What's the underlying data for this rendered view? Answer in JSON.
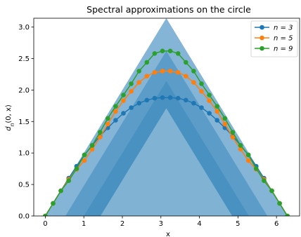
{
  "chart_data": {
    "type": "line",
    "title": "Spectral approximations on the circle",
    "xlabel": "x",
    "ylabel": "d_n(0, x)",
    "xlim": [
      -0.3,
      6.6
    ],
    "ylim": [
      0,
      3.14
    ],
    "xticks": [
      "0",
      "1",
      "2",
      "3",
      "4",
      "5",
      "6"
    ],
    "yticks": [
      "0.0",
      "0.5",
      "1.0",
      "1.5",
      "2.0",
      "2.5",
      "3.0"
    ],
    "grid": false,
    "legend_position": "top-right",
    "bands": [
      {
        "apex": 3.1416,
        "color": "#1f77b4",
        "opacity": 0.55
      },
      {
        "apex": 2.62,
        "color": "#1f77b4",
        "opacity": 0.4
      },
      {
        "apex": 2.14,
        "color": "#1f77b4",
        "opacity": 0.3
      },
      {
        "apex": 1.71,
        "color": "#ffffff",
        "opacity": 0.3
      }
    ],
    "x": [
      0.0,
      0.2027,
      0.4054,
      0.6081,
      0.8108,
      1.0135,
      1.2162,
      1.4189,
      1.6216,
      1.8243,
      2.027,
      2.2297,
      2.4324,
      2.6351,
      2.8378,
      3.0405,
      3.2432,
      3.4459,
      3.6486,
      3.8513,
      4.054,
      4.2567,
      4.4594,
      4.6621,
      4.8648,
      5.0675,
      5.2702,
      5.4729,
      5.6756,
      5.8783,
      6.081,
      6.2837
    ],
    "series": [
      {
        "name": "n = 3",
        "color": "#1f77b4",
        "values": [
          0.0,
          0.2,
          0.4,
          0.6,
          0.79,
          0.97,
          1.12,
          1.27,
          1.4,
          1.52,
          1.63,
          1.72,
          1.79,
          1.84,
          1.87,
          1.88,
          1.88,
          1.87,
          1.84,
          1.79,
          1.72,
          1.63,
          1.52,
          1.4,
          1.27,
          1.12,
          0.97,
          0.79,
          0.6,
          0.4,
          0.2,
          0.0
        ]
      },
      {
        "name": "n = 5",
        "color": "#ff7f0e",
        "values": [
          0.0,
          0.2,
          0.4,
          0.58,
          0.74,
          0.88,
          1.06,
          1.25,
          1.46,
          1.66,
          1.83,
          1.98,
          2.12,
          2.22,
          2.28,
          2.3,
          2.3,
          2.28,
          2.22,
          2.12,
          1.98,
          1.83,
          1.66,
          1.46,
          1.25,
          1.06,
          0.88,
          0.74,
          0.58,
          0.4,
          0.2,
          0.0
        ]
      },
      {
        "name": "n = 9",
        "color": "#2ca02c",
        "values": [
          0.0,
          0.2,
          0.4,
          0.56,
          0.75,
          0.97,
          1.12,
          1.33,
          1.55,
          1.74,
          1.92,
          2.1,
          2.3,
          2.44,
          2.58,
          2.62,
          2.62,
          2.58,
          2.44,
          2.3,
          2.1,
          1.92,
          1.74,
          1.55,
          1.33,
          1.12,
          0.97,
          0.75,
          0.56,
          0.4,
          0.2,
          0.0
        ]
      }
    ]
  }
}
